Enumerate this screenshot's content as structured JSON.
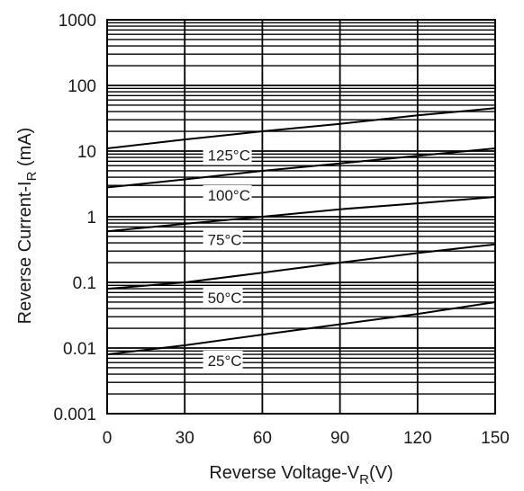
{
  "chart_data": {
    "type": "line",
    "xlabel": "Reverse Voltage-V",
    "xlabel_sub": "R",
    "xlabel_unit": "(V)",
    "ylabel": "Reverse Current-I",
    "ylabel_sub": "R",
    "ylabel_unit": "(mA)",
    "x_scale": "linear",
    "y_scale": "log",
    "xlim": [
      0,
      150
    ],
    "ylim": [
      0.001,
      1000
    ],
    "x_ticks": [
      "0",
      "30",
      "60",
      "90",
      "120",
      "150"
    ],
    "y_ticks": [
      "0.001",
      "0.01",
      "0.1",
      "1",
      "10",
      "100",
      "1000"
    ],
    "grid": "on",
    "series": [
      {
        "name": "125°C",
        "x": [
          0,
          30,
          60,
          90,
          120,
          150
        ],
        "y": [
          11,
          15,
          20,
          26,
          35,
          45
        ]
      },
      {
        "name": "100°C",
        "x": [
          0,
          30,
          60,
          90,
          120,
          150
        ],
        "y": [
          2.8,
          3.7,
          5,
          6.5,
          8.5,
          11
        ]
      },
      {
        "name": "75°C",
        "x": [
          0,
          30,
          60,
          90,
          120,
          150
        ],
        "y": [
          0.6,
          0.78,
          1.0,
          1.3,
          1.6,
          2.0
        ]
      },
      {
        "name": "50°C",
        "x": [
          0,
          30,
          60,
          90,
          120,
          150
        ],
        "y": [
          0.08,
          0.1,
          0.14,
          0.2,
          0.28,
          0.38
        ]
      },
      {
        "name": "25°C",
        "x": [
          0,
          30,
          60,
          90,
          120,
          150
        ],
        "y": [
          0.008,
          0.011,
          0.016,
          0.023,
          0.033,
          0.05
        ]
      }
    ],
    "label_positions_desc": "inline labels placed just below each curve near x=30..40"
  }
}
